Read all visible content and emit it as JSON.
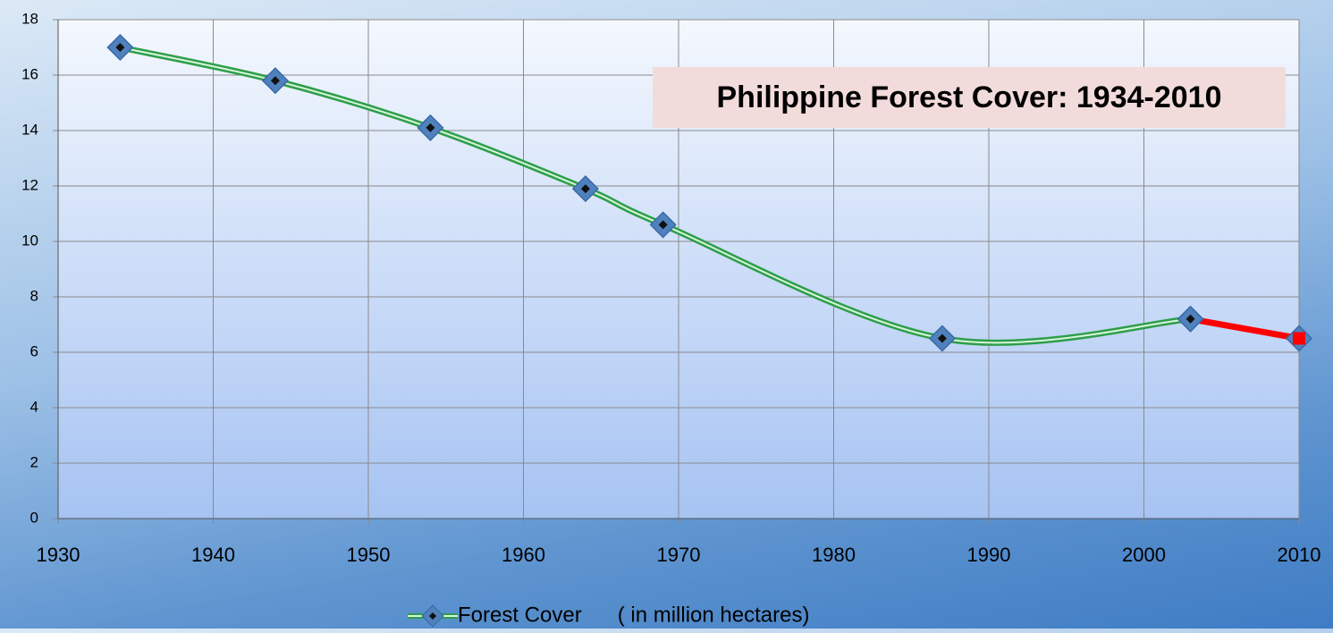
{
  "chart_data": {
    "type": "line",
    "title": "Philippine Forest Cover: 1934-2010",
    "x": [
      1934,
      1944,
      1954,
      1964,
      1969,
      1987,
      2003,
      2010
    ],
    "series": [
      {
        "name": "Forest Cover      ( in million hectares)",
        "color": "#2e9e4a",
        "marker_color": "#4f81bd",
        "values": [
          17,
          15.8,
          14.1,
          11.9,
          10.6,
          6.5,
          7.2,
          6.5
        ]
      }
    ],
    "last_segment_color": "#ff0000",
    "xlim": [
      1930,
      2010
    ],
    "xticks": [
      1930,
      1940,
      1950,
      1960,
      1970,
      1980,
      1990,
      2000,
      2010
    ],
    "ylim": [
      0,
      18
    ],
    "yticks": [
      0,
      2,
      4,
      6,
      8,
      10,
      12,
      14,
      16,
      18
    ],
    "grid": true,
    "smooth": true,
    "legend": "bottom"
  }
}
